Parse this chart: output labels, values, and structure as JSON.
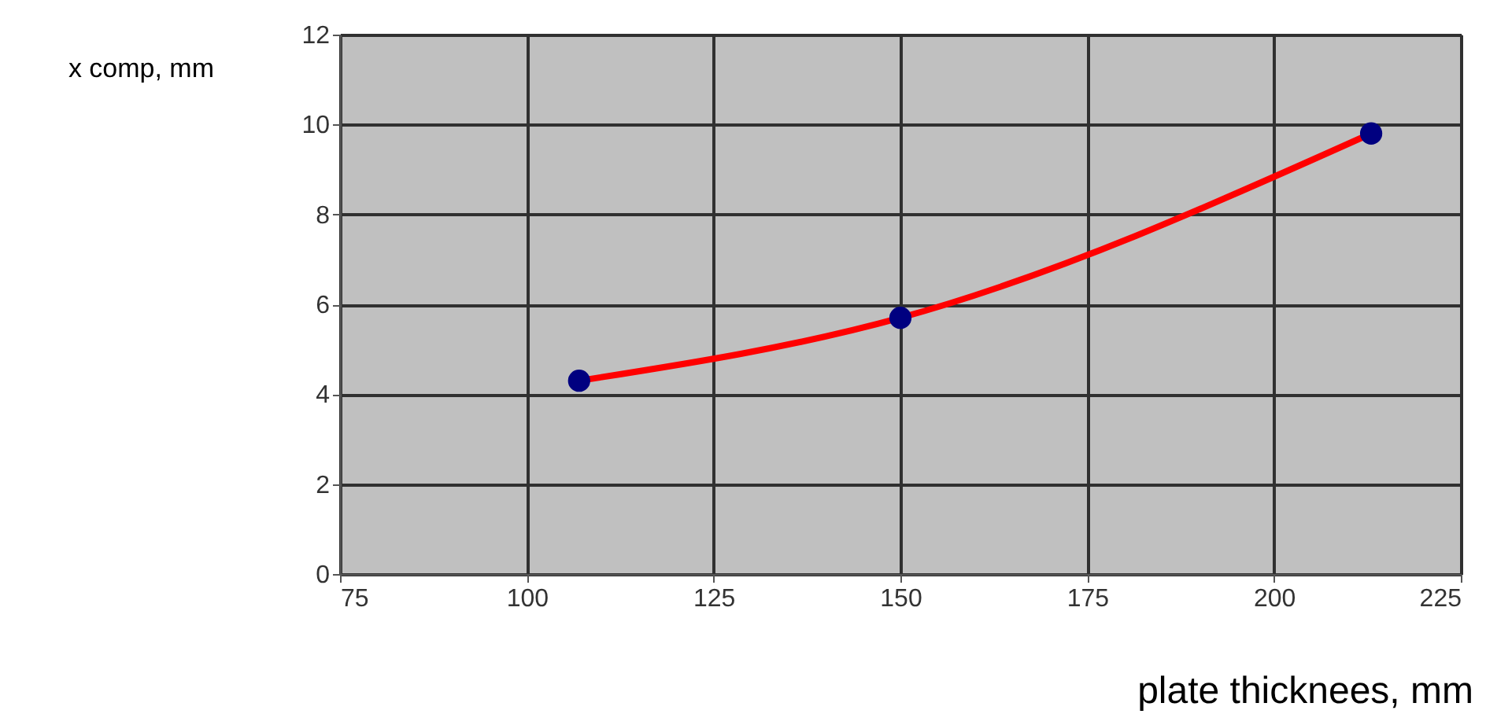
{
  "chart_data": {
    "type": "line",
    "xlabel": "plate thicknees, mm",
    "ylabel": "x comp, mm",
    "x": [
      107,
      150,
      213
    ],
    "series": [
      {
        "color": "#ff0000",
        "colors": [
          "#000080",
          "#000080",
          "#000080"
        ],
        "values": [
          4.3,
          5.7,
          9.8
        ]
      }
    ],
    "xlim": [
      75,
      225
    ],
    "xticks": [
      75,
      100,
      125,
      150,
      175,
      200,
      225
    ],
    "ylim": [
      0,
      12
    ],
    "yticks": [
      0,
      2,
      4,
      6,
      8,
      10,
      12
    ],
    "grid": true,
    "marker": "circle",
    "line_style": "solid"
  }
}
